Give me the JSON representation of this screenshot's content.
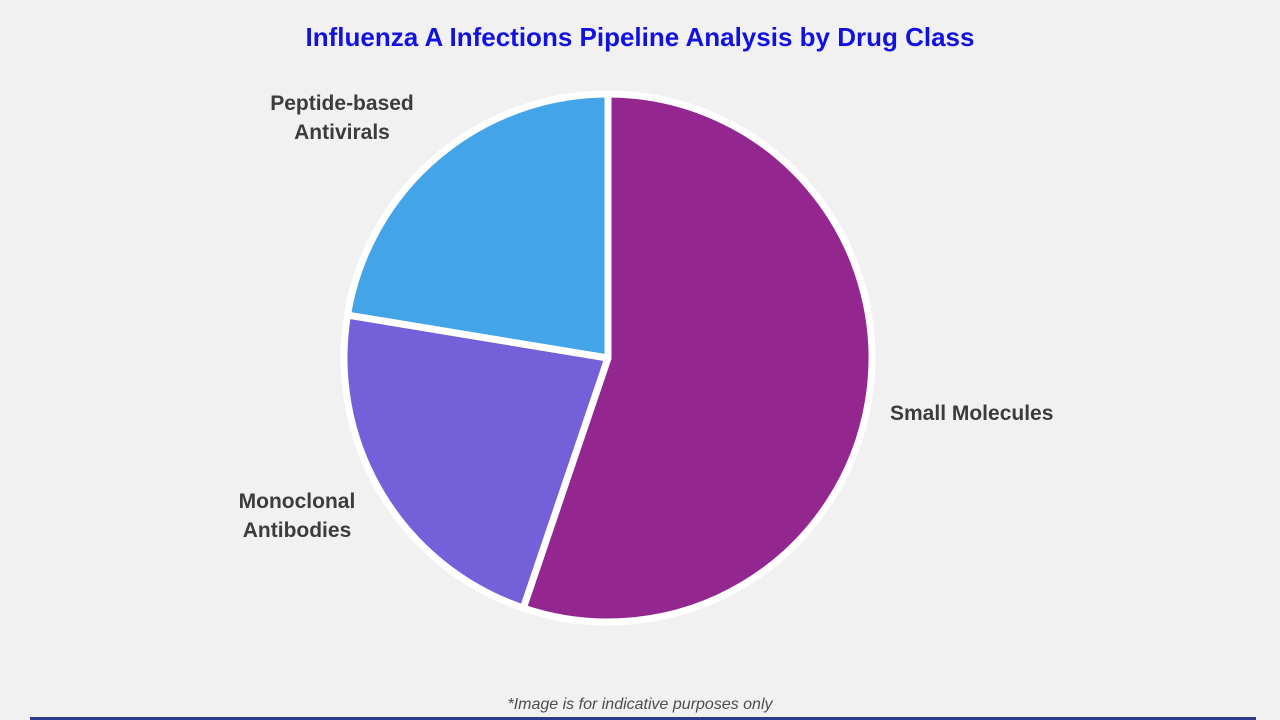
{
  "title": "Influenza A Infections Pipeline Analysis by Drug Class",
  "footnote": "*Image is for indicative purposes only",
  "colors": {
    "background": "#F1F1F2",
    "title": "#1212E0",
    "label": "#3C3C3C",
    "footnote": "#4D4D4D",
    "separator": "#FFFFFF",
    "bottom_bar": "#2E3A8C"
  },
  "chart_data": {
    "type": "pie",
    "title": "Influenza A Infections Pipeline Analysis by Drug Class",
    "slices": [
      {
        "label": "Small Molecules",
        "value": 55.2,
        "color": "#93278F"
      },
      {
        "label": "Monoclonal Antibodies",
        "value": 22.4,
        "color": "#7460D9"
      },
      {
        "label": "Peptide-based Antivirals",
        "value": 22.4,
        "color": "#43A4E8"
      }
    ],
    "values_are": "estimated_percent",
    "start_angle_deg": 0,
    "direction": "clockwise",
    "separator_color": "#FFFFFF",
    "legend_position": "outside-labels",
    "annotations": [
      "*Image is for indicative purposes only"
    ]
  }
}
